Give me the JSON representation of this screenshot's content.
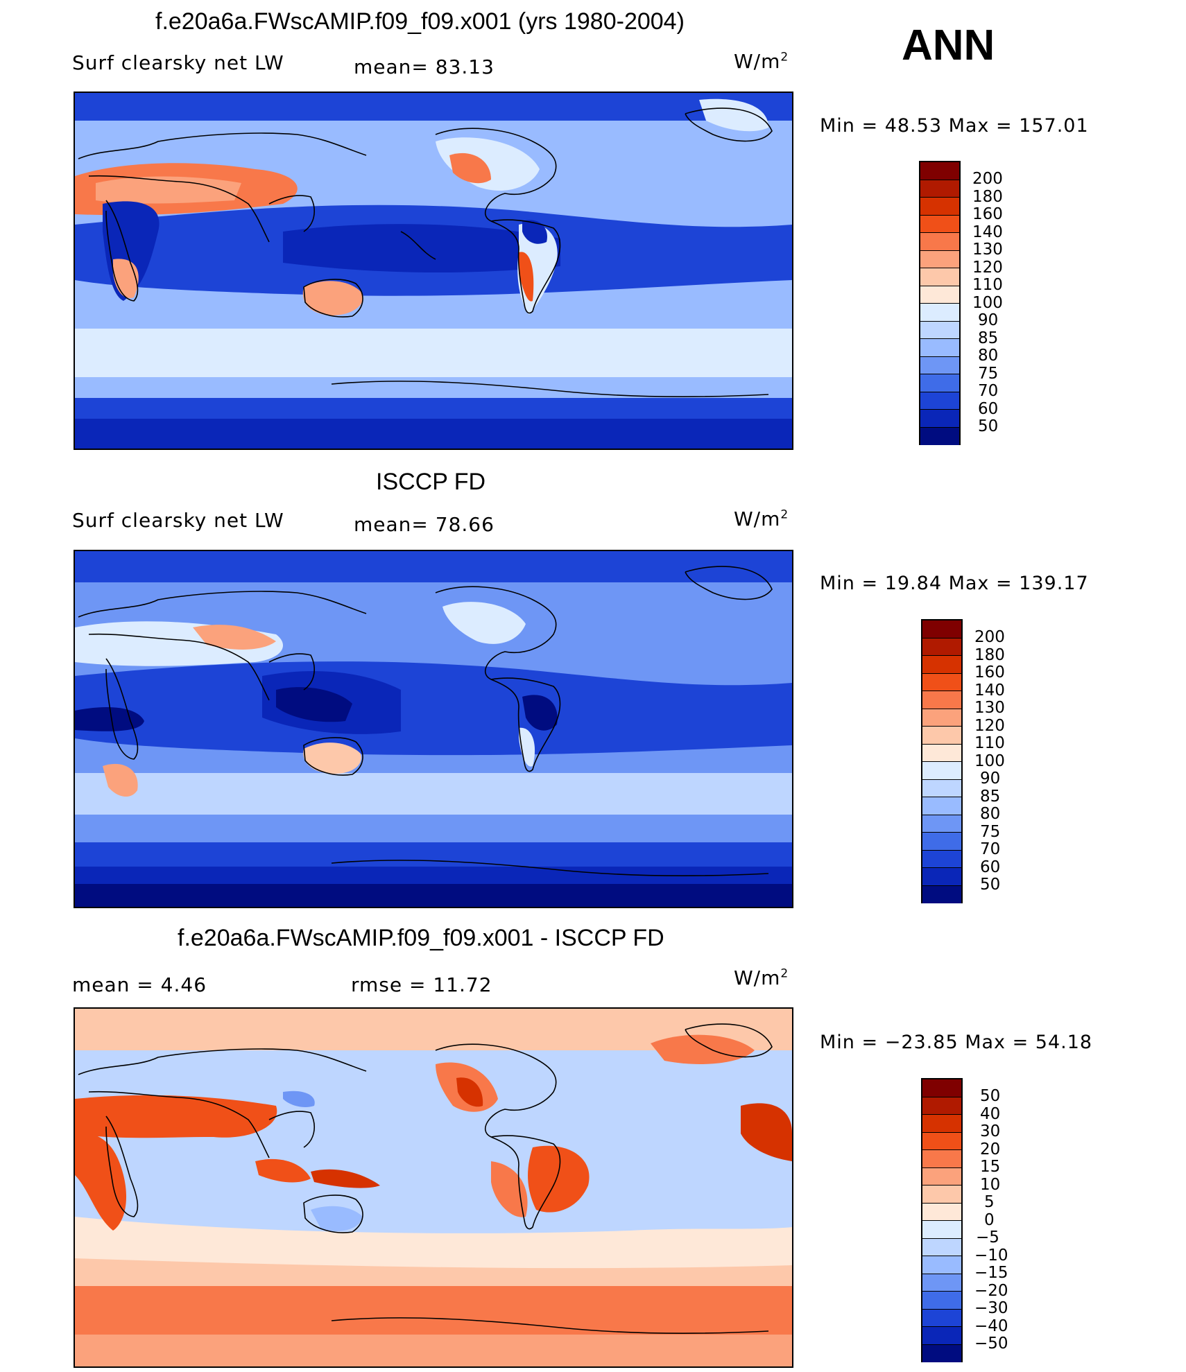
{
  "season": "ANN",
  "panels": [
    {
      "id": "model",
      "title": "f.e20a6a.FWscAMIP.f09_f09.x001 (yrs 1980-2004)",
      "variable": "Surf clearsky net LW",
      "stat1": "mean=  83.13",
      "units": "W/m",
      "units_exp": "2",
      "minmax": "Min =   48.53  Max =  157.01",
      "colorbar_labels": [
        "200",
        "180",
        "160",
        "140",
        "130",
        "120",
        "110",
        "100",
        "90",
        "85",
        "80",
        "75",
        "70",
        "60",
        "50"
      ]
    },
    {
      "id": "obs",
      "title": "ISCCP FD",
      "variable": "Surf clearsky net LW",
      "stat1": "mean=  78.66",
      "units": "W/m",
      "units_exp": "2",
      "minmax": "Min =   19.84  Max =  139.17",
      "colorbar_labels": [
        "200",
        "180",
        "160",
        "140",
        "130",
        "120",
        "110",
        "100",
        "90",
        "85",
        "80",
        "75",
        "70",
        "60",
        "50"
      ]
    },
    {
      "id": "diff",
      "title": "f.e20a6a.FWscAMIP.f09_f09.x001 - ISCCP FD",
      "variable": "mean =    4.46",
      "stat1": "rmse =   11.72",
      "units": "W/m",
      "units_exp": "2",
      "minmax": "Min = −23.85  Max =   54.18",
      "colorbar_labels": [
        "50",
        "40",
        "30",
        "20",
        "15",
        "10",
        "5",
        "0",
        "−5",
        "−10",
        "−15",
        "−20",
        "−30",
        "−40",
        "−50"
      ]
    }
  ],
  "colors": {
    "abs_scale": [
      "#7f0000",
      "#b01a00",
      "#d63200",
      "#f05018",
      "#f8784a",
      "#fba27c",
      "#fdc8aa",
      "#fee8d8",
      "#dcecff",
      "#bed6ff",
      "#99bbff",
      "#6e96f5",
      "#3f6ce8",
      "#1d44d6",
      "#0a26b8",
      "#000c80"
    ],
    "diff_scale": [
      "#7f0000",
      "#b01a00",
      "#d63200",
      "#f05018",
      "#f8784a",
      "#fba27c",
      "#fdc8aa",
      "#fee8d8",
      "#dcecff",
      "#bed6ff",
      "#99bbff",
      "#6e96f5",
      "#3f6ce8",
      "#1d44d6",
      "#0a26b8",
      "#000c80"
    ]
  }
}
